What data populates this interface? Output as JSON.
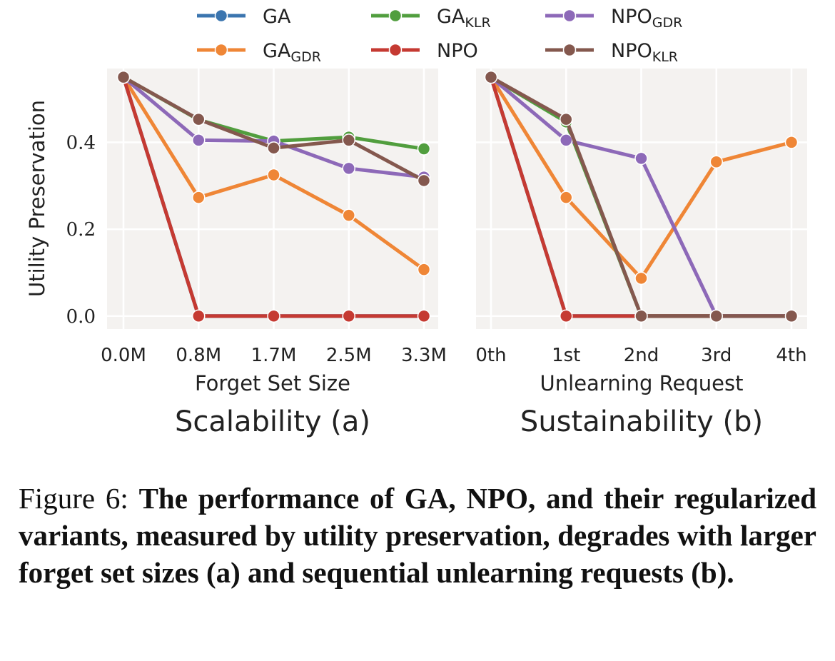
{
  "legend": [
    {
      "name": "GA",
      "base": "GA",
      "sub": "",
      "color": "#3b75af"
    },
    {
      "name": "GA_GDR",
      "base": "GA",
      "sub": "GDR",
      "color": "#ef8636"
    },
    {
      "name": "GA_KLR",
      "base": "GA",
      "sub": "KLR",
      "color": "#519e3e"
    },
    {
      "name": "NPO",
      "base": "NPO",
      "sub": "",
      "color": "#c53a32"
    },
    {
      "name": "NPO_GDR",
      "base": "NPO",
      "sub": "GDR",
      "color": "#8d69b8"
    },
    {
      "name": "NPO_KLR",
      "base": "NPO",
      "sub": "KLR",
      "color": "#84584e"
    }
  ],
  "chart_data": [
    {
      "type": "line",
      "title": "Scalability (a)",
      "xlabel": "Forget Set Size",
      "ylabel": "Utility Preservation",
      "categories": [
        "0.0M",
        "0.8M",
        "1.7M",
        "2.5M",
        "3.3M"
      ],
      "yticks": [
        "0.0",
        "0.2",
        "0.4"
      ],
      "ylim": [
        -0.03,
        0.57
      ],
      "grid": true,
      "series": [
        {
          "name": "GA",
          "values": [
            0.55,
            0.0,
            0.0,
            0.0,
            0.0
          ]
        },
        {
          "name": "GA_GDR",
          "values": [
            0.55,
            0.273,
            0.325,
            0.232,
            0.107
          ]
        },
        {
          "name": "GA_KLR",
          "values": [
            0.55,
            0.452,
            0.403,
            0.412,
            0.385
          ]
        },
        {
          "name": "NPO",
          "values": [
            0.55,
            0.0,
            0.0,
            0.0,
            0.0
          ]
        },
        {
          "name": "NPO_GDR",
          "values": [
            0.55,
            0.405,
            0.403,
            0.34,
            0.32
          ]
        },
        {
          "name": "NPO_KLR",
          "values": [
            0.55,
            0.453,
            0.387,
            0.405,
            0.312
          ]
        }
      ]
    },
    {
      "type": "line",
      "title": "Sustainability (b)",
      "xlabel": "Unlearning Request",
      "ylabel": "",
      "categories": [
        "0th",
        "1st",
        "2nd",
        "3rd",
        "4th"
      ],
      "yticks": [],
      "ylim": [
        -0.03,
        0.57
      ],
      "grid": true,
      "series": [
        {
          "name": "GA",
          "values": [
            0.55,
            0.0,
            0.0,
            0.0,
            0.0
          ]
        },
        {
          "name": "GA_GDR",
          "values": [
            0.55,
            0.273,
            0.087,
            0.355,
            0.4
          ]
        },
        {
          "name": "GA_KLR",
          "values": [
            0.55,
            0.447,
            0.0,
            0.0,
            0.0
          ]
        },
        {
          "name": "NPO",
          "values": [
            0.55,
            0.0,
            0.0,
            0.0,
            0.0
          ]
        },
        {
          "name": "NPO_GDR",
          "values": [
            0.55,
            0.405,
            0.363,
            0.0,
            0.0
          ]
        },
        {
          "name": "NPO_KLR",
          "values": [
            0.55,
            0.453,
            0.0,
            0.0,
            0.0
          ]
        }
      ]
    }
  ],
  "caption": {
    "lead": "Figure 6: ",
    "body": "The performance of GA, NPO, and their regularized variants, measured by utility preservation, degrades with larger forget set sizes (a) and sequential unlearning requests (b)."
  }
}
